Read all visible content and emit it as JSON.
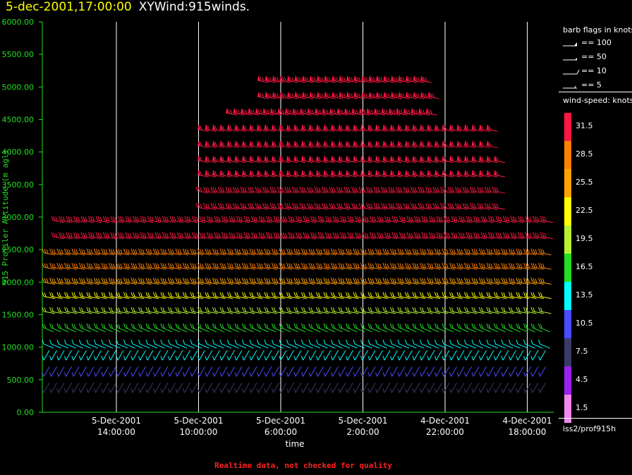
{
  "title": {
    "date": "5-dec-2001,17:00:00",
    "plot": "XYWind:915winds."
  },
  "footer": "Realtime data, not checked for quality",
  "legend": {
    "flags_title": "barb flags in knots",
    "flags": [
      {
        "icon": "pennant-flag-icon",
        "label": "== 100"
      },
      {
        "icon": "pennant-half-flag-icon",
        "label": "== 50"
      },
      {
        "icon": "full-barb-icon",
        "label": "== 10"
      },
      {
        "icon": "half-barb-icon",
        "label": "== 5"
      }
    ],
    "speed_title": "wind-speed: knots",
    "scale": [
      {
        "label": "31.5",
        "color": "#ff1744"
      },
      {
        "label": "28.5",
        "color": "#ff8000"
      },
      {
        "label": "25.5",
        "color": "#ffa200"
      },
      {
        "label": "22.5",
        "color": "#ffff00"
      },
      {
        "label": "19.5",
        "color": "#b8f030"
      },
      {
        "label": "16.5",
        "color": "#22e022"
      },
      {
        "label": "13.5",
        "color": "#00ffff"
      },
      {
        "label": "10.5",
        "color": "#4a4aff"
      },
      {
        "label": "7.5",
        "color": "#3a3a6a"
      },
      {
        "label": "4.5",
        "color": "#9922ee"
      },
      {
        "label": "1.5",
        "color": "#ee88ee"
      }
    ],
    "station": "iss2/prof915h"
  },
  "chart_data": {
    "type": "scatter",
    "ylabel": "915 Profiler Altitude (m agl)",
    "xlabel": "time",
    "ylim": [
      0,
      6000
    ],
    "yticks": [
      "0.00",
      "500.00",
      "1000.00",
      "1500.00",
      "2000.00",
      "2500.00",
      "3000.00",
      "3500.00",
      "4000.00",
      "4500.00",
      "5000.00",
      "5500.00",
      "6000.00"
    ],
    "xticks": [
      {
        "date": "5-Dec-2001",
        "time": "14:00:00"
      },
      {
        "date": "5-Dec-2001",
        "time": "10:00:00"
      },
      {
        "date": "5-Dec-2001",
        "time": "6:00:00"
      },
      {
        "date": "5-Dec-2001",
        "time": "2:00:00"
      },
      {
        "date": "4-Dec-2001",
        "time": "22:00:00"
      },
      {
        "date": "4-Dec-2001",
        "time": "18:00:00"
      }
    ],
    "x_direction": "time decreases to the right",
    "grid": "vertical lines at x ticks",
    "series_note": "wind barbs at profiler range gates colored by speed",
    "levels": [
      {
        "altitude": 300,
        "speed": 6.5
      },
      {
        "altitude": 550,
        "speed": 9
      },
      {
        "altitude": 800,
        "speed": 12
      },
      {
        "altitude": 1050,
        "speed": 14
      },
      {
        "altitude": 1300,
        "speed": 17
      },
      {
        "altitude": 1550,
        "speed": 20
      },
      {
        "altitude": 1780,
        "speed": 22
      },
      {
        "altitude": 2000,
        "speed": 25
      },
      {
        "altitude": 2230,
        "speed": 27
      },
      {
        "altitude": 2450,
        "speed": 28
      },
      {
        "altitude": 2700,
        "speed": 30
      },
      {
        "altitude": 2950,
        "speed": 31
      },
      {
        "altitude": 3150,
        "speed": 32
      },
      {
        "altitude": 3400,
        "speed": 32
      },
      {
        "altitude": 3650,
        "speed": 33
      },
      {
        "altitude": 3870,
        "speed": 33
      },
      {
        "altitude": 4100,
        "speed": 34
      },
      {
        "altitude": 4350,
        "speed": 34
      },
      {
        "altitude": 4600,
        "speed": 35
      },
      {
        "altitude": 4850,
        "speed": 36
      },
      {
        "altitude": 5100,
        "speed": 38
      }
    ]
  }
}
